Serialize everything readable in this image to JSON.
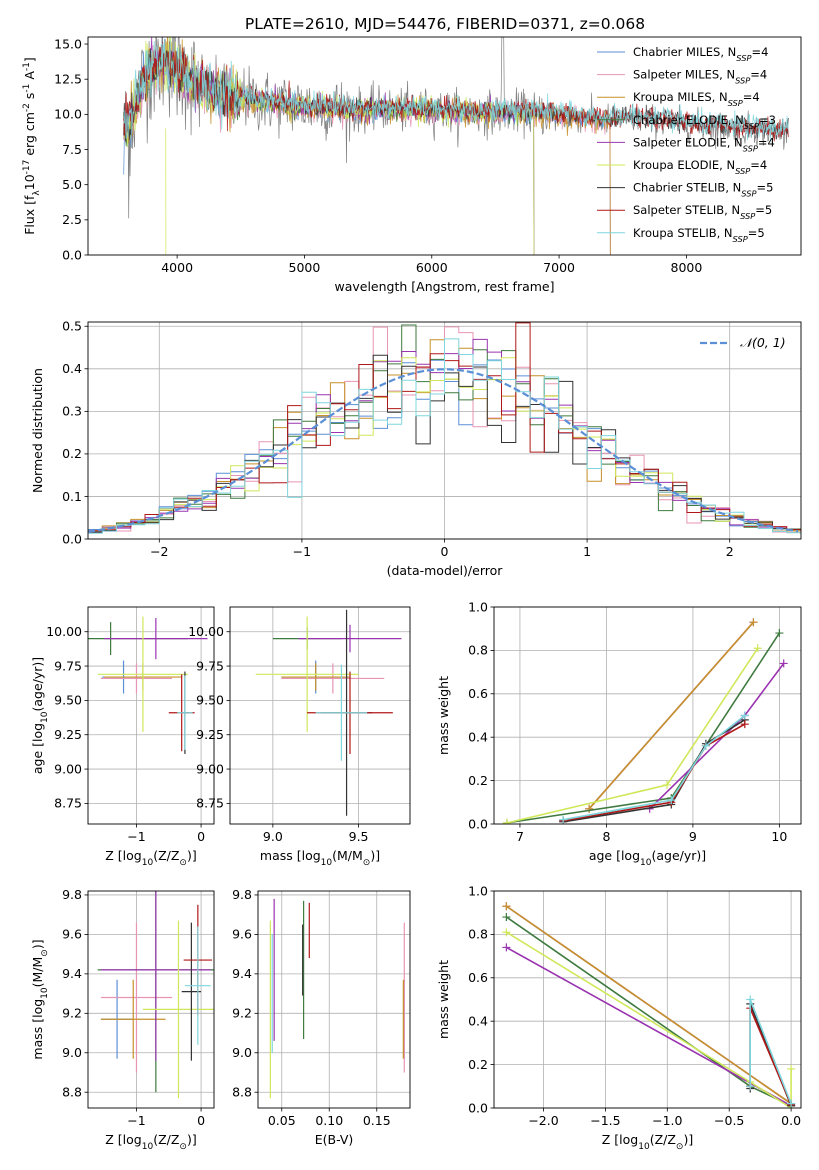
{
  "figure_title": "PLATE=2610, MJD=54476, FIBERID=0371, z=0.068",
  "colors": {
    "Chabrier MILES": "#5b8fd6",
    "Salpeter MILES": "#e895b5",
    "Kroupa MILES": "#c7902a",
    "Chabrier ELODIE": "#3f7a3f",
    "Salpeter ELODIE": "#9a34b0",
    "Kroupa ELODIE": "#cfe85a",
    "Chabrier STELIB": "#333333",
    "Salpeter STELIB": "#b01818",
    "Kroupa STELIB": "#7fd6dd",
    "data": "#808080",
    "gauss": "#5b8fd6"
  },
  "chart_data": [
    {
      "id": "spectrum",
      "type": "line",
      "title": "PLATE=2610, MJD=54476, FIBERID=0371, z=0.068",
      "xlabel": "wavelength [Angstrom, rest frame]",
      "ylabel": "Flux [f$_\\lambda$10$^{-17}$ erg cm$^{-2}$ s$^{-1}$ A$^{-1}$]",
      "xlim": [
        3300,
        8900
      ],
      "ylim": [
        0,
        15.5
      ],
      "xticks": [
        4000,
        5000,
        6000,
        7000,
        8000
      ],
      "yticks": [
        0.0,
        2.5,
        5.0,
        7.5,
        10.0,
        12.5,
        15.0
      ],
      "grid": false,
      "legend_position": "top-right",
      "legend": [
        {
          "name": "Chabrier MILES",
          "nssp": "4"
        },
        {
          "name": "Salpeter MILES",
          "nssp": "4"
        },
        {
          "name": "Kroupa MILES",
          "nssp": "4"
        },
        {
          "name": "Chabrier ELODIE",
          "nssp": "3"
        },
        {
          "name": "Salpeter ELODIE",
          "nssp": "4"
        },
        {
          "name": "Kroupa ELODIE",
          "nssp": "4"
        },
        {
          "name": "Chabrier STELIB",
          "nssp": "5"
        },
        {
          "name": "Salpeter STELIB",
          "nssp": "5"
        },
        {
          "name": "Kroupa STELIB",
          "nssp": "5"
        }
      ],
      "data_shape": {
        "x": [
          3580,
          3650,
          3700,
          3750,
          3800,
          3850,
          3900,
          3950,
          4000,
          4100,
          4200,
          4300,
          4400,
          4500,
          4600,
          4800,
          5000,
          5200,
          5400,
          5600,
          5800,
          6000,
          6200,
          6400,
          6600,
          6800,
          7000,
          7200,
          7400,
          7600,
          7800,
          8000,
          8200,
          8400,
          8600,
          8800
        ],
        "y": [
          8.8,
          9.8,
          11.5,
          12.8,
          13.2,
          13.5,
          13.8,
          13.5,
          13.2,
          12.5,
          11.8,
          11.5,
          11.2,
          11.2,
          11.0,
          10.8,
          10.6,
          10.5,
          10.3,
          10.4,
          10.3,
          10.3,
          10.2,
          10.1,
          10.2,
          10.1,
          10.0,
          9.8,
          9.6,
          9.7,
          9.5,
          9.3,
          9.1,
          9.0,
          8.9,
          8.8
        ]
      }
    },
    {
      "id": "residuals",
      "type": "histogram",
      "xlabel": "(data-model)/error",
      "ylabel": "Normed distribution",
      "xlim": [
        -2.5,
        2.5
      ],
      "ylim": [
        0,
        0.51
      ],
      "xticks": [
        -2,
        -1,
        0,
        1,
        2
      ],
      "yticks": [
        0.0,
        0.1,
        0.2,
        0.3,
        0.4,
        0.5
      ],
      "grid": true,
      "legend_position": "top-right",
      "legend_label": "$\\mathcal{N}(0,1)$",
      "bin_width": 0.1
    },
    {
      "id": "age_Z",
      "type": "errorbar",
      "xlabel": "Z [log$_{10}$(Z/Z$_\\odot$)]",
      "ylabel": "age  [log$_{10}$(age/yr)]",
      "xlim": [
        -1.75,
        0.2
      ],
      "ylim": [
        8.6,
        10.18
      ],
      "xticks": [
        -1,
        0
      ],
      "yticks": [
        8.75,
        9.0,
        9.25,
        9.5,
        9.75,
        10.0
      ],
      "grid": true,
      "points": [
        {
          "model": "Chabrier MILES",
          "x": -1.2,
          "xerr": 0.33,
          "y": 9.67,
          "yerr": 0.12
        },
        {
          "model": "Salpeter MILES",
          "x": -1.0,
          "xerr": 0.55,
          "y": 9.66,
          "yerr": 0.11
        },
        {
          "model": "Kroupa MILES",
          "x": -0.9,
          "xerr": 0.6,
          "y": 9.67,
          "yerr": 0.1
        },
        {
          "model": "Chabrier ELODIE",
          "x": -1.4,
          "xerr": 1.2,
          "y": 9.95,
          "yerr": 0.12
        },
        {
          "model": "Salpeter ELODIE",
          "x": -0.7,
          "xerr": 0.8,
          "y": 9.95,
          "yerr": 0.15
        },
        {
          "model": "Kroupa ELODIE",
          "x": -0.9,
          "xerr": 0.7,
          "y": 9.69,
          "yerr": 0.42
        },
        {
          "model": "Chabrier STELIB",
          "x": -0.25,
          "xerr": 0.05,
          "y": 9.41,
          "yerr": 0.3
        },
        {
          "model": "Salpeter STELIB",
          "x": -0.3,
          "xerr": 0.2,
          "y": 9.41,
          "yerr": 0.28
        },
        {
          "model": "Kroupa STELIB",
          "x": -0.25,
          "xerr": 0.12,
          "y": 9.41,
          "yerr": 0.27
        }
      ]
    },
    {
      "id": "age_mass",
      "type": "errorbar",
      "xlabel": "mass [log$_{10}$(M/M$_\\odot$)]",
      "ylabel": "",
      "xlim": [
        8.75,
        9.8
      ],
      "ylim": [
        8.6,
        10.18
      ],
      "xticks": [
        9.0,
        9.5
      ],
      "yticks": [
        8.75,
        9.0,
        9.25,
        9.5,
        9.75,
        10.0
      ],
      "grid": true,
      "points": [
        {
          "model": "Chabrier MILES",
          "x": 9.25,
          "xerr": 0.2,
          "y": 9.67,
          "yerr": 0.12
        },
        {
          "model": "Salpeter MILES",
          "x": 9.35,
          "xerr": 0.3,
          "y": 9.66,
          "yerr": 0.11
        },
        {
          "model": "Kroupa MILES",
          "x": 9.25,
          "xerr": 0.2,
          "y": 9.67,
          "yerr": 0.1
        },
        {
          "model": "Chabrier ELODIE",
          "x": 9.2,
          "xerr": 0.2,
          "y": 9.95,
          "yerr": 0.08
        },
        {
          "model": "Salpeter ELODIE",
          "x": 9.45,
          "xerr": 0.3,
          "y": 9.95,
          "yerr": 0.1
        },
        {
          "model": "Kroupa ELODIE",
          "x": 9.2,
          "xerr": 0.3,
          "y": 9.69,
          "yerr": 0.42
        },
        {
          "model": "Chabrier STELIB",
          "x": 9.43,
          "xerr": 0.15,
          "y": 9.41,
          "yerr": 0.75
        },
        {
          "model": "Salpeter STELIB",
          "x": 9.45,
          "xerr": 0.25,
          "y": 9.41,
          "yerr": 0.3
        },
        {
          "model": "Kroupa STELIB",
          "x": 9.4,
          "xerr": 0.15,
          "y": 9.41,
          "yerr": 0.35
        }
      ]
    },
    {
      "id": "mw_age",
      "type": "line",
      "xlabel": "age  [log$_{10}$(age/yr)]",
      "ylabel": "mass weight",
      "xlim": [
        6.7,
        10.25
      ],
      "ylim": [
        0,
        1.0
      ],
      "xticks": [
        7,
        8,
        9,
        10
      ],
      "yticks": [
        0.0,
        0.2,
        0.4,
        0.6,
        0.8,
        1.0
      ],
      "grid": true,
      "series": [
        {
          "model": "Chabrier MILES",
          "x": [
            7.8,
            9.7
          ],
          "y": [
            0.07,
            0.93
          ]
        },
        {
          "model": "Salpeter MILES",
          "x": [
            7.8,
            9.7
          ],
          "y": [
            0.07,
            0.93
          ]
        },
        {
          "model": "Kroupa MILES",
          "x": [
            7.8,
            9.7
          ],
          "y": [
            0.07,
            0.93
          ]
        },
        {
          "model": "Chabrier ELODIE",
          "x": [
            6.85,
            8.75,
            10.0
          ],
          "y": [
            0.005,
            0.12,
            0.88
          ]
        },
        {
          "model": "Salpeter ELODIE",
          "x": [
            8.5,
            9.6,
            10.05
          ],
          "y": [
            0.07,
            0.5,
            0.74
          ]
        },
        {
          "model": "Kroupa ELODIE",
          "x": [
            6.85,
            8.7,
            9.75
          ],
          "y": [
            0.005,
            0.18,
            0.81
          ]
        },
        {
          "model": "Chabrier STELIB",
          "x": [
            7.5,
            8.75,
            9.15,
            9.6
          ],
          "y": [
            0.01,
            0.09,
            0.37,
            0.48
          ]
        },
        {
          "model": "Salpeter STELIB",
          "x": [
            7.5,
            8.75,
            9.15,
            9.6
          ],
          "y": [
            0.015,
            0.1,
            0.36,
            0.46
          ]
        },
        {
          "model": "Kroupa STELIB",
          "x": [
            7.5,
            8.75,
            9.15,
            9.6
          ],
          "y": [
            0.02,
            0.11,
            0.36,
            0.5
          ]
        }
      ]
    },
    {
      "id": "mass_Z",
      "type": "errorbar",
      "xlabel": "Z [log$_{10}$(Z/Z$_\\odot$)]",
      "ylabel": "mass [log$_{10}$(M/M$_\\odot$)]",
      "xlim": [
        -1.75,
        0.2
      ],
      "ylim": [
        8.72,
        9.82
      ],
      "xticks": [
        -1,
        0
      ],
      "yticks": [
        8.8,
        9.0,
        9.2,
        9.4,
        9.6,
        9.8
      ],
      "grid": true,
      "points": [
        {
          "model": "Chabrier MILES",
          "x": -1.3,
          "xerr": 0.25,
          "y": 9.17,
          "yerr": 0.2
        },
        {
          "model": "Salpeter MILES",
          "x": -1.0,
          "xerr": 0.55,
          "y": 9.28,
          "yerr": 0.38
        },
        {
          "model": "Kroupa MILES",
          "x": -1.05,
          "xerr": 0.5,
          "y": 9.17,
          "yerr": 0.2
        },
        {
          "model": "Chabrier ELODIE",
          "x": -0.7,
          "xerr": 0.9,
          "y": 9.42,
          "yerr": 0.62
        },
        {
          "model": "Salpeter ELODIE",
          "x": -0.7,
          "xerr": 0.85,
          "y": 9.42,
          "yerr": 0.46
        },
        {
          "model": "Kroupa ELODIE",
          "x": -0.35,
          "xerr": 0.55,
          "y": 9.22,
          "yerr": 0.45
        },
        {
          "model": "Chabrier STELIB",
          "x": -0.15,
          "xerr": 0.15,
          "y": 9.31,
          "yerr": 0.35
        },
        {
          "model": "Salpeter STELIB",
          "x": -0.05,
          "xerr": 0.22,
          "y": 9.47,
          "yerr": 0.28
        },
        {
          "model": "Kroupa STELIB",
          "x": -0.05,
          "xerr": 0.2,
          "y": 9.34,
          "yerr": 0.3
        }
      ]
    },
    {
      "id": "mass_EBV",
      "type": "errorbar",
      "xlabel": "E(B-V)",
      "ylabel": "",
      "xlim": [
        0.025,
        0.185
      ],
      "ylim": [
        8.72,
        9.82
      ],
      "xticks": [
        0.05,
        0.1,
        0.15
      ],
      "yticks": [
        8.8,
        9.0,
        9.2,
        9.4,
        9.6,
        9.8
      ],
      "grid": true,
      "points": [
        {
          "model": "Chabrier MILES",
          "x": 0.179,
          "y": 9.17,
          "yerr": 0.2
        },
        {
          "model": "Salpeter MILES",
          "x": 0.179,
          "y": 9.28,
          "yerr": 0.38
        },
        {
          "model": "Kroupa MILES",
          "x": 0.178,
          "y": 9.17,
          "yerr": 0.2
        },
        {
          "model": "Chabrier ELODIE",
          "x": 0.073,
          "y": 9.42,
          "yerr": 0.35
        },
        {
          "model": "Salpeter ELODIE",
          "x": 0.042,
          "y": 9.42,
          "yerr": 0.36
        },
        {
          "model": "Kroupa ELODIE",
          "x": 0.038,
          "y": 9.22,
          "yerr": 0.45
        },
        {
          "model": "Chabrier STELIB",
          "x": 0.072,
          "y": 9.47,
          "yerr": 0.18
        },
        {
          "model": "Salpeter STELIB",
          "x": 0.079,
          "y": 9.62,
          "yerr": 0.14
        },
        {
          "model": "Kroupa STELIB",
          "x": 0.04,
          "y": 9.3,
          "yerr": 0.3
        }
      ]
    },
    {
      "id": "mw_Z",
      "type": "line",
      "xlabel": "Z [log$_{10}$(Z/Z$_\\odot$)]",
      "ylabel": "mass weight",
      "xlim": [
        -2.4,
        0.08
      ],
      "ylim": [
        0,
        1.0
      ],
      "xticks": [
        -2.0,
        -1.5,
        -1.0,
        -0.5,
        0.0
      ],
      "yticks": [
        0.0,
        0.2,
        0.4,
        0.6,
        0.8,
        1.0
      ],
      "grid": true,
      "series": [
        {
          "model": "Chabrier MILES",
          "x": [
            -2.3,
            0.0
          ],
          "y": [
            0.93,
            0.02
          ]
        },
        {
          "model": "Salpeter MILES",
          "x": [
            -2.3,
            0.0
          ],
          "y": [
            0.93,
            0.02
          ]
        },
        {
          "model": "Kroupa MILES",
          "x": [
            -2.3,
            0.0
          ],
          "y": [
            0.93,
            0.02
          ]
        },
        {
          "model": "Chabrier ELODIE",
          "x": [
            -2.3,
            -0.33,
            0.0
          ],
          "y": [
            0.88,
            0.1,
            0.01
          ]
        },
        {
          "model": "Salpeter ELODIE",
          "x": [
            -2.3,
            0.0
          ],
          "y": [
            0.74,
            0.01
          ]
        },
        {
          "model": "Kroupa ELODIE",
          "x": [
            -2.3,
            -0.33,
            0.0,
            0.0
          ],
          "y": [
            0.81,
            0.12,
            0.0,
            0.18
          ]
        },
        {
          "model": "Chabrier STELIB",
          "x": [
            -0.33,
            -0.33,
            0.0
          ],
          "y": [
            0.09,
            0.48,
            0.01
          ]
        },
        {
          "model": "Salpeter STELIB",
          "x": [
            -0.33,
            -0.33,
            0.0
          ],
          "y": [
            0.1,
            0.46,
            0.015
          ]
        },
        {
          "model": "Kroupa STELIB",
          "x": [
            -0.33,
            -0.33,
            0.0
          ],
          "y": [
            0.1,
            0.5,
            0.02
          ]
        }
      ]
    }
  ]
}
